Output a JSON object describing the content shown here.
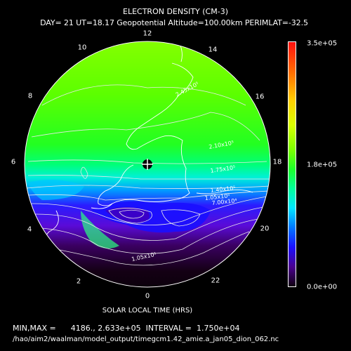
{
  "title": "ELECTRON DENSITY (CM-3)",
  "subtitle": "DAY= 21 UT=18.17 Geopotential Altitude=100.00km PERIMLAT=-32.5",
  "xlabel": "SOLAR LOCAL TIME (HRS)",
  "minmax_line": "MIN,MAX =      4186., 2.633e+05  INTERVAL =  1.750e+04",
  "filepath": "/hao/aim2/waalman/model_output/timegcm1.42_amie.a_jan05_dion_062.nc",
  "hour_labels": [
    "12",
    "14",
    "16",
    "18",
    "20",
    "22",
    "0",
    "2",
    "4",
    "6",
    "8",
    "10"
  ],
  "colorbar": {
    "max_label": "3.5e+05",
    "mid_label": "1.8e+05",
    "min_label": "0.0e+00",
    "min": 0,
    "max": 350000
  },
  "contour_labels": [
    "2.45x10⁵",
    "2.10x10⁵",
    "1.75x10⁵",
    "1.40x10⁵",
    "1.05x10⁵",
    "7.00x10⁴",
    "1.05x10⁵"
  ],
  "colors": {
    "background": "#000000",
    "text": "#ffffff",
    "high": "#ff1010",
    "mid": "#00ffe0",
    "low": "#100010"
  }
}
